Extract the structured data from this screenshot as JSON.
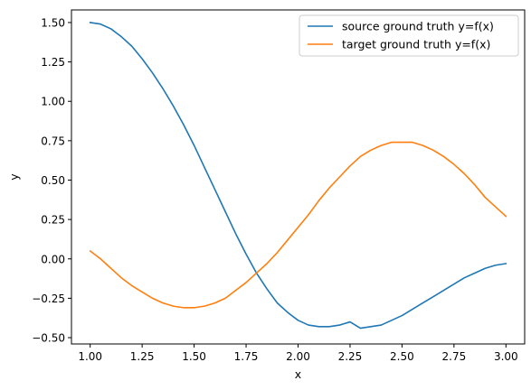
{
  "chart_data": {
    "type": "line",
    "title": "",
    "xlabel": "x",
    "ylabel": "y",
    "xlim": [
      0.91,
      3.09
    ],
    "ylim": [
      -0.54,
      1.58
    ],
    "xticks": [
      1.0,
      1.25,
      1.5,
      1.75,
      2.0,
      2.25,
      2.5,
      2.75,
      3.0
    ],
    "xtick_labels": [
      "1.00",
      "1.25",
      "1.50",
      "1.75",
      "2.00",
      "2.25",
      "2.50",
      "2.75",
      "3.00"
    ],
    "yticks": [
      -0.5,
      -0.25,
      0.0,
      0.25,
      0.5,
      0.75,
      1.0,
      1.25,
      1.5
    ],
    "ytick_labels": [
      "−0.50",
      "−0.25",
      "0.00",
      "0.25",
      "0.50",
      "0.75",
      "1.00",
      "1.25",
      "1.50"
    ],
    "grid": false,
    "legend_position": "top-right",
    "series": [
      {
        "name": "source ground truth y=f(x)",
        "color": "#1f77b4",
        "x": [
          1.0,
          1.05,
          1.1,
          1.15,
          1.2,
          1.25,
          1.3,
          1.35,
          1.4,
          1.45,
          1.5,
          1.55,
          1.6,
          1.65,
          1.7,
          1.75,
          1.8,
          1.85,
          1.9,
          1.95,
          2.0,
          2.05,
          2.1,
          2.15,
          2.2,
          2.25,
          2.3,
          2.35,
          2.4,
          2.45,
          2.5,
          2.55,
          2.6,
          2.65,
          2.7,
          2.75,
          2.8,
          2.85,
          2.9,
          2.95,
          3.0
        ],
        "y": [
          1.5,
          1.49,
          1.46,
          1.41,
          1.35,
          1.27,
          1.18,
          1.08,
          0.97,
          0.85,
          0.72,
          0.58,
          0.44,
          0.3,
          0.16,
          0.03,
          -0.09,
          -0.19,
          -0.28,
          -0.34,
          -0.39,
          -0.42,
          -0.43,
          -0.43,
          -0.42,
          -0.4,
          -0.44,
          -0.43,
          -0.42,
          -0.39,
          -0.36,
          -0.32,
          -0.28,
          -0.24,
          -0.2,
          -0.16,
          -0.12,
          -0.09,
          -0.06,
          -0.04,
          -0.03
        ]
      },
      {
        "name": "target ground truth y=f(x)",
        "color": "#ff7f0e",
        "x": [
          1.0,
          1.05,
          1.1,
          1.15,
          1.2,
          1.25,
          1.3,
          1.35,
          1.4,
          1.45,
          1.5,
          1.55,
          1.6,
          1.65,
          1.7,
          1.75,
          1.8,
          1.85,
          1.9,
          1.95,
          2.0,
          2.05,
          2.1,
          2.15,
          2.2,
          2.25,
          2.3,
          2.35,
          2.4,
          2.45,
          2.5,
          2.55,
          2.6,
          2.65,
          2.7,
          2.75,
          2.8,
          2.85,
          2.9,
          2.95,
          3.0
        ],
        "y": [
          0.05,
          0.0,
          -0.06,
          -0.12,
          -0.17,
          -0.21,
          -0.25,
          -0.28,
          -0.3,
          -0.31,
          -0.31,
          -0.3,
          -0.28,
          -0.25,
          -0.2,
          -0.15,
          -0.09,
          -0.03,
          0.04,
          0.12,
          0.2,
          0.28,
          0.37,
          0.45,
          0.52,
          0.59,
          0.65,
          0.69,
          0.72,
          0.74,
          0.74,
          0.74,
          0.72,
          0.69,
          0.65,
          0.6,
          0.54,
          0.47,
          0.39,
          0.33,
          0.27
        ]
      }
    ]
  }
}
